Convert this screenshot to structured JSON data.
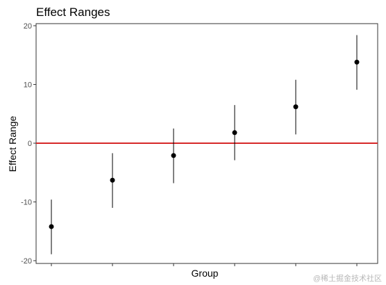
{
  "title": "Effect Ranges",
  "watermark": "@稀土掘金技术社区",
  "chart_data": {
    "type": "scatter",
    "title": "Effect Ranges",
    "xlabel": "Group",
    "ylabel": "Effect Range",
    "ylim": [
      -20,
      20
    ],
    "yticks": [
      -20,
      -10,
      0,
      10,
      20
    ],
    "grid": false,
    "x_tick_labels_visible": false,
    "series": [
      {
        "points": [
          {
            "x": 1,
            "y": -14.2,
            "low": -18.9,
            "high": -9.6
          },
          {
            "x": 2,
            "y": -6.3,
            "low": -11.0,
            "high": -1.7
          },
          {
            "x": 3,
            "y": -2.1,
            "low": -6.8,
            "high": 2.5
          },
          {
            "x": 4,
            "y": 1.8,
            "low": -2.9,
            "high": 6.5
          },
          {
            "x": 5,
            "y": 6.2,
            "low": 1.5,
            "high": 10.8
          },
          {
            "x": 6,
            "y": 13.8,
            "low": 9.1,
            "high": 18.4
          }
        ]
      }
    ],
    "reference_line": {
      "y": 0,
      "color": "#d62728"
    },
    "colors": {
      "points": "#000000",
      "errorbars": "#000000",
      "axis": "#333333",
      "tick_text": "#4d4d4d"
    }
  }
}
